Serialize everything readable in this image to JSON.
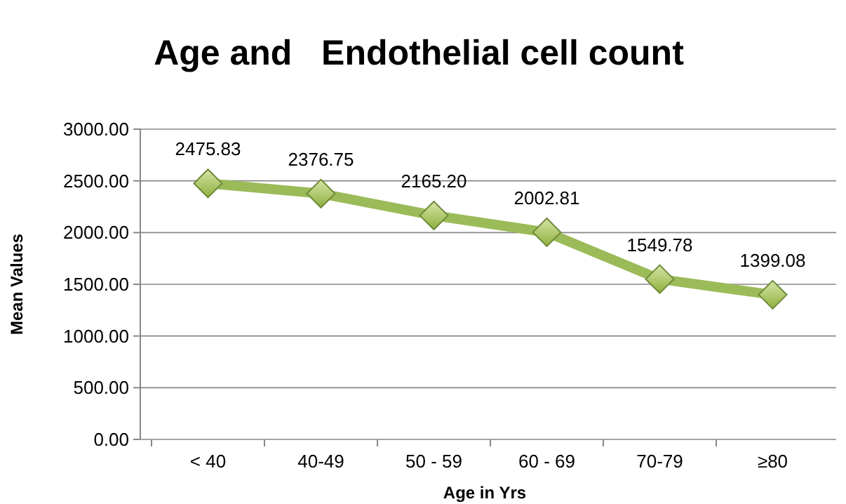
{
  "chart_data": {
    "type": "line",
    "title": "Age and   Endothelial cell count",
    "xlabel": "Age in Yrs",
    "ylabel": "Mean Values",
    "categories": [
      "< 40",
      "40-49",
      "50 - 59",
      "60 - 69",
      "70-79",
      "≥80"
    ],
    "values": [
      2475.83,
      2376.75,
      2165.2,
      2002.81,
      1549.78,
      1399.08
    ],
    "value_labels": [
      "2475.83",
      "2376.75",
      "2165.20",
      "2002.81",
      "1549.78",
      "1399.08"
    ],
    "color": "#9bbb59",
    "marker": "diamond",
    "line_style": "solid",
    "ylim": [
      0,
      3000
    ],
    "yticks": [
      {
        "value": 0,
        "label": "0.00"
      },
      {
        "value": 500,
        "label": "500.00"
      },
      {
        "value": 1000,
        "label": "1000.00"
      },
      {
        "value": 1500,
        "label": "1500.00"
      },
      {
        "value": 2000,
        "label": "2000.00"
      },
      {
        "value": 2500,
        "label": "2500.00"
      },
      {
        "value": 3000,
        "label": "3000.00"
      }
    ],
    "grid": "y"
  }
}
